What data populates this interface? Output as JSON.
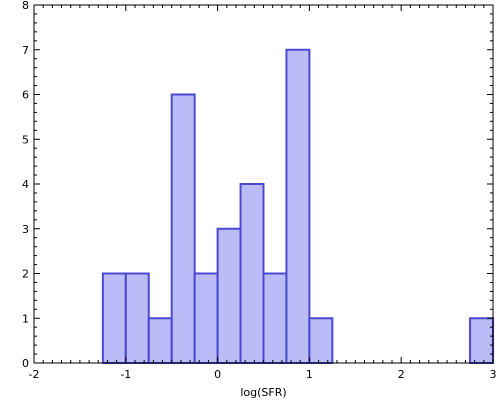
{
  "chart_data": {
    "type": "bar",
    "title": "",
    "xlabel": "log(SFR)",
    "ylabel": "",
    "xlim": [
      -2,
      3
    ],
    "ylim": [
      0,
      8
    ],
    "xticks": [
      "-2",
      "-1",
      "0",
      "1",
      "2",
      "3"
    ],
    "yticks": [
      "0",
      "1",
      "2",
      "3",
      "4",
      "5",
      "6",
      "7",
      "8"
    ],
    "grid": false,
    "bin_width": 0.25,
    "bins": [
      {
        "x0": -1.25,
        "x1": -1.0,
        "count": 2
      },
      {
        "x0": -1.0,
        "x1": -0.75,
        "count": 2
      },
      {
        "x0": -0.75,
        "x1": -0.5,
        "count": 1
      },
      {
        "x0": -0.5,
        "x1": -0.25,
        "count": 6
      },
      {
        "x0": -0.25,
        "x1": 0.0,
        "count": 2
      },
      {
        "x0": 0.0,
        "x1": 0.25,
        "count": 3
      },
      {
        "x0": 0.25,
        "x1": 0.5,
        "count": 4
      },
      {
        "x0": 0.5,
        "x1": 0.75,
        "count": 2
      },
      {
        "x0": 0.75,
        "x1": 1.0,
        "count": 7
      },
      {
        "x0": 1.0,
        "x1": 1.25,
        "count": 1
      },
      {
        "x0": 2.75,
        "x1": 3.0,
        "count": 1
      }
    ],
    "colors": {
      "fill": "#bbbbf7",
      "edge": "#4a4ad0",
      "axis": "#000000"
    }
  }
}
